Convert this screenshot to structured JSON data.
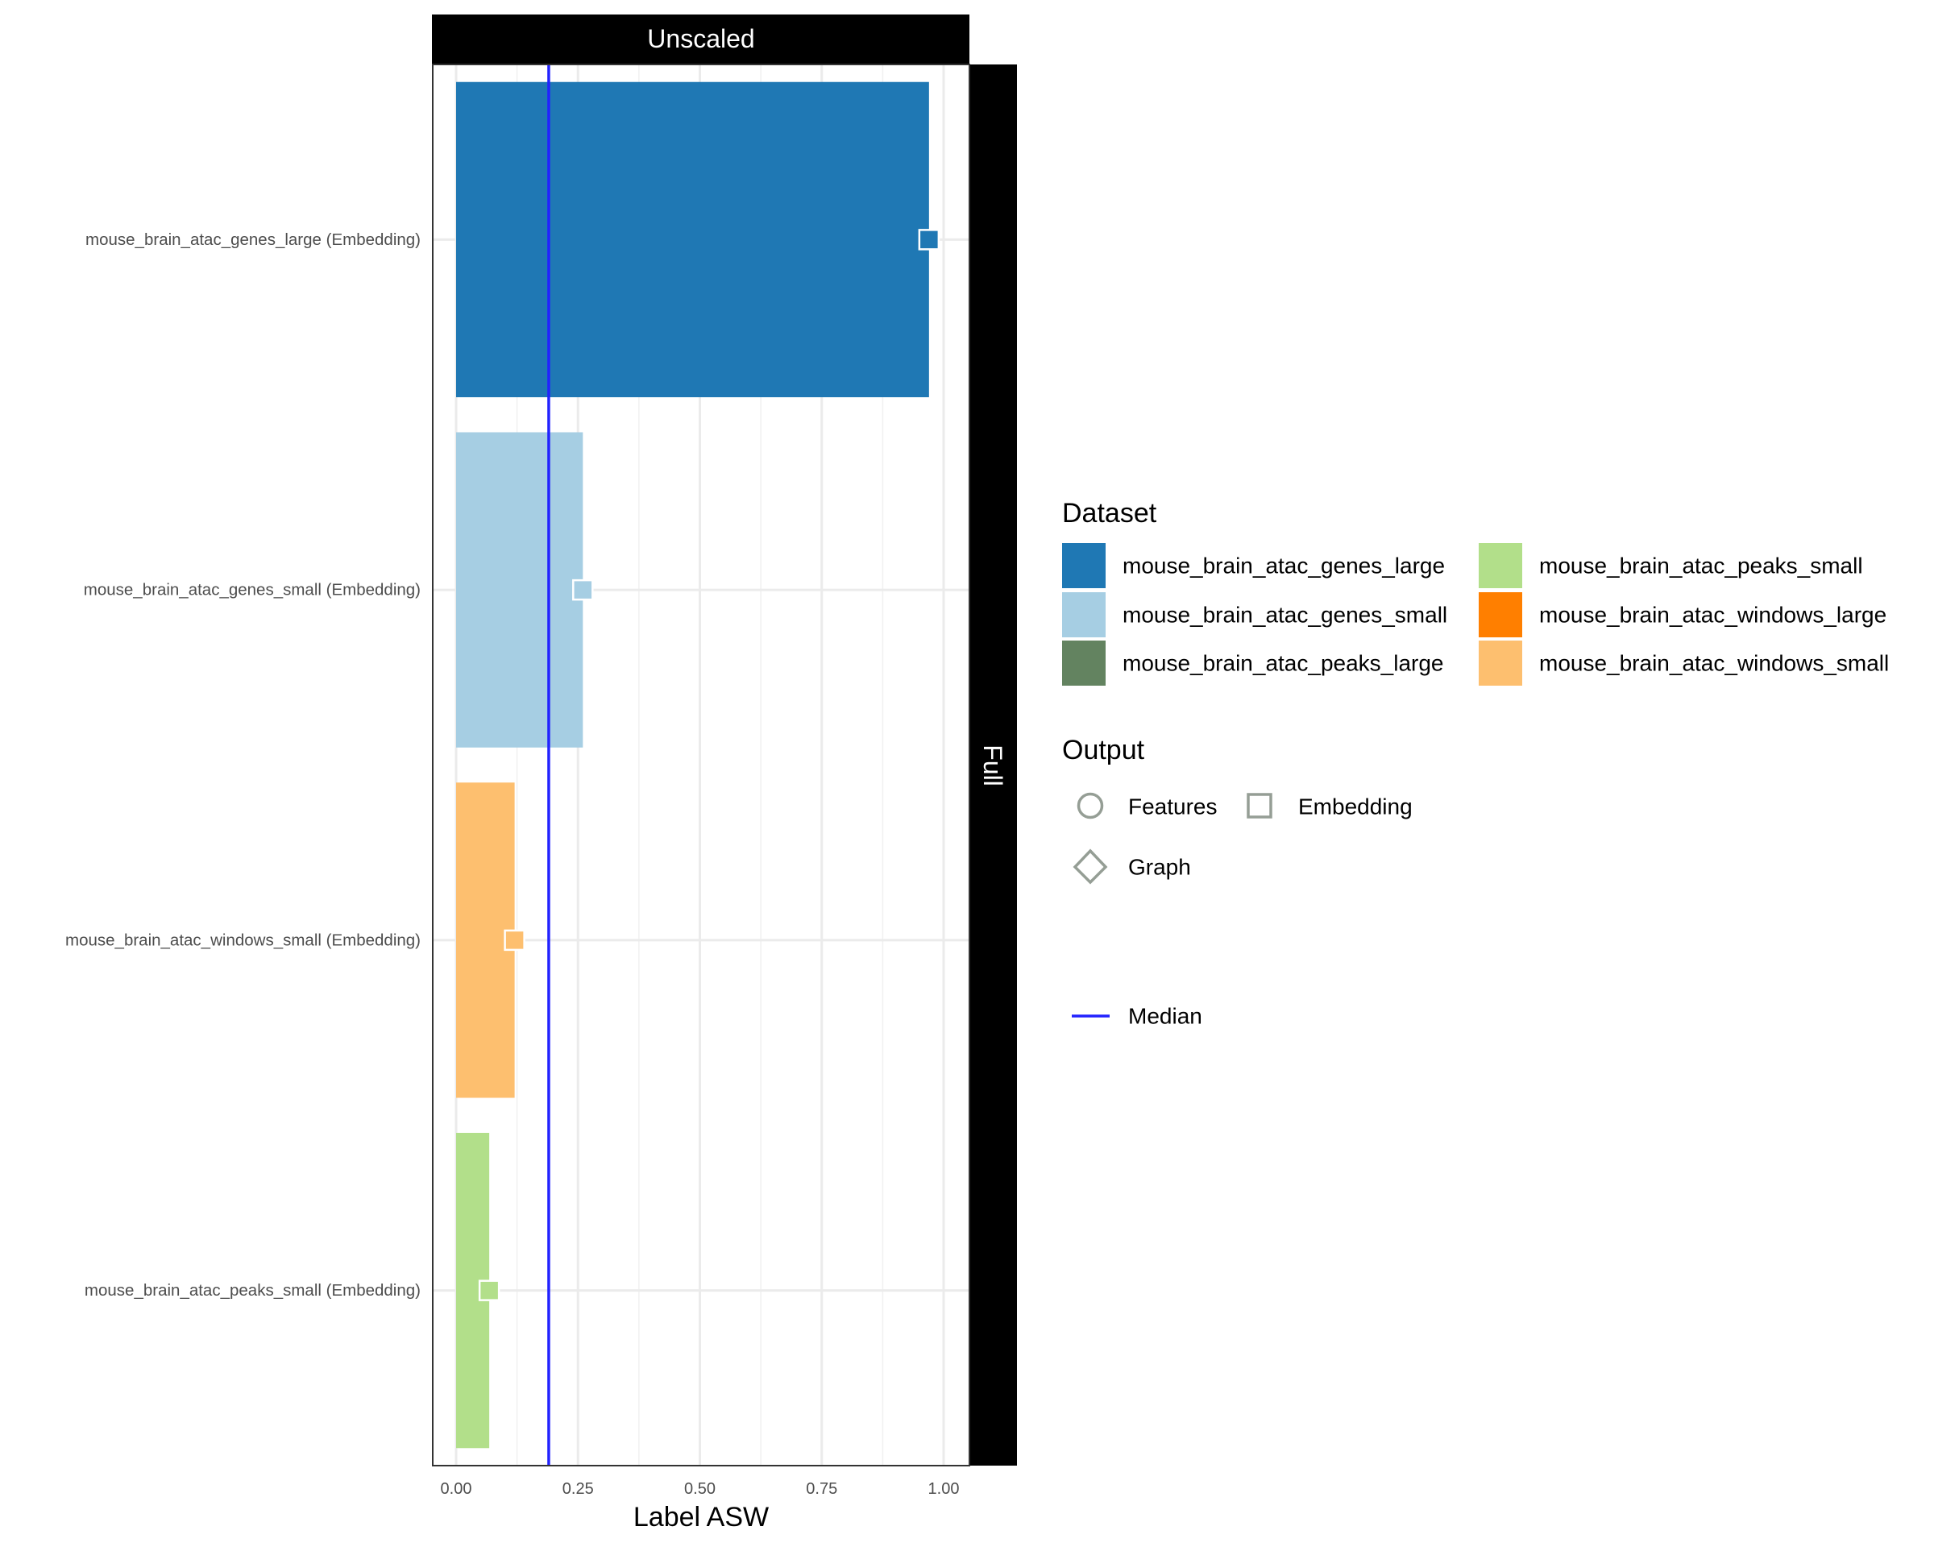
{
  "chart_data": {
    "type": "bar",
    "orientation": "horizontal",
    "facet_column": "Unscaled",
    "facet_row": "Full",
    "categories": [
      "mouse_brain_atac_genes_large (Embedding)",
      "mouse_brain_atac_genes_small (Embedding)",
      "mouse_brain_atac_windows_small (Embedding)",
      "mouse_brain_atac_peaks_small (Embedding)"
    ],
    "bars": [
      {
        "label": "mouse_brain_atac_genes_large (Embedding)",
        "dataset": "mouse_brain_atac_genes_large",
        "output": "Embedding",
        "value": 0.97,
        "color": "#1f78b4"
      },
      {
        "label": "mouse_brain_atac_genes_small (Embedding)",
        "dataset": "mouse_brain_atac_genes_small",
        "output": "Embedding",
        "value": 0.26,
        "color": "#a6cee3"
      },
      {
        "label": "mouse_brain_atac_windows_small (Embedding)",
        "dataset": "mouse_brain_atac_windows_small",
        "output": "Embedding",
        "value": 0.12,
        "color": "#fdbf6f"
      },
      {
        "label": "mouse_brain_atac_peaks_small (Embedding)",
        "dataset": "mouse_brain_atac_peaks_small",
        "output": "Embedding",
        "value": 0.068,
        "color": "#b2df8a"
      }
    ],
    "median": 0.19,
    "median_color": "#2222ff",
    "xlabel": "Label ASW",
    "ylabel": "",
    "xlim": [
      -0.05,
      1.05
    ],
    "xticks": [
      0,
      0.25,
      0.5,
      0.75,
      1.0
    ],
    "xtick_labels": [
      "0.00",
      "0.25",
      "0.50",
      "0.75",
      "1.00"
    ],
    "grid": true,
    "legend_position": "right",
    "legends": {
      "dataset": {
        "title": "Dataset",
        "items": [
          {
            "label": "mouse_brain_atac_genes_large",
            "color": "#1f78b4"
          },
          {
            "label": "mouse_brain_atac_genes_small",
            "color": "#a6cee3"
          },
          {
            "label": "mouse_brain_atac_peaks_large",
            "color": "#638360"
          },
          {
            "label": "mouse_brain_atac_peaks_small",
            "color": "#b2df8a"
          },
          {
            "label": "mouse_brain_atac_windows_large",
            "color": "#ff7f00"
          },
          {
            "label": "mouse_brain_atac_windows_small",
            "color": "#fdbf6f"
          }
        ]
      },
      "output": {
        "title": "Output",
        "items": [
          {
            "label": "Features",
            "shape": "circle-icon"
          },
          {
            "label": "Embedding",
            "shape": "square-icon"
          },
          {
            "label": "Graph",
            "shape": "diamond-icon"
          }
        ],
        "marker_color": "#959e95"
      },
      "median": {
        "label": "Median",
        "color": "#2222ff"
      }
    }
  }
}
